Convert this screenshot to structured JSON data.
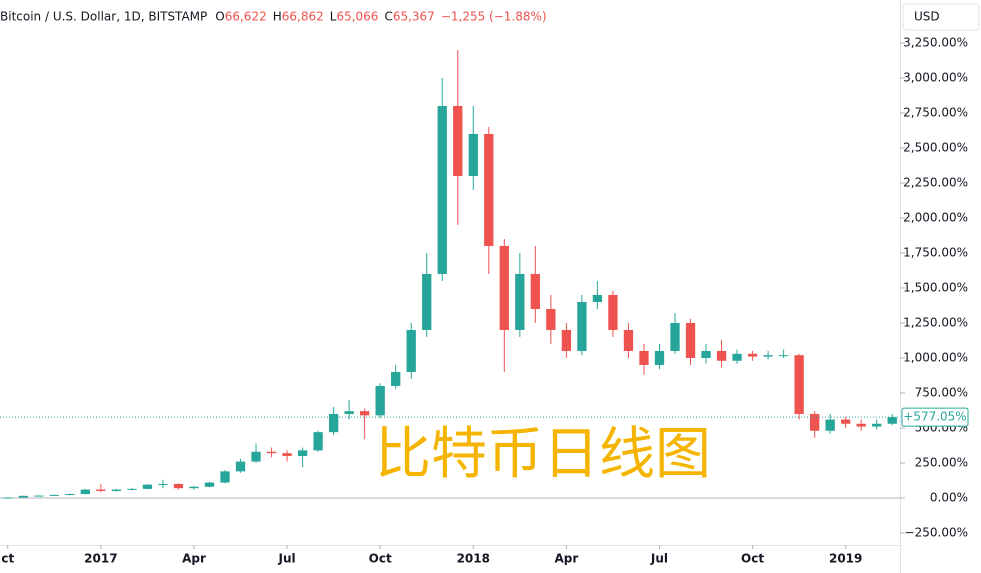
{
  "chart_data": {
    "type": "candlestick",
    "header": {
      "title": "Bitcoin / U.S. Dollar, 1D, BITSTAMP",
      "ohlc": [
        {
          "key": "O",
          "value": "66,622"
        },
        {
          "key": "H",
          "value": "66,862"
        },
        {
          "key": "L",
          "value": "65,066"
        },
        {
          "key": "C",
          "value": "65,367"
        }
      ],
      "change": "−1,255 (−1.88%)"
    },
    "currency": "USD",
    "watermark": "比特币日线图",
    "last_label": "+577.05%",
    "up_color": "#26a69a",
    "down_color": "#ef5350",
    "categories": [
      "ct",
      null,
      null,
      null,
      null,
      null,
      "2017",
      null,
      null,
      null,
      null,
      null,
      "Apr",
      null,
      null,
      null,
      null,
      null,
      "Jul",
      null,
      null,
      null,
      null,
      null,
      "Oct",
      null,
      null,
      null,
      null,
      null,
      "2018",
      null,
      null,
      null,
      null,
      null,
      "Apr",
      null,
      null,
      null,
      null,
      null,
      "Jul",
      null,
      null,
      null,
      null,
      null,
      "Oct",
      null,
      null,
      null,
      null,
      null,
      "2019",
      null,
      null,
      null
    ],
    "series": [
      {
        "name": "Bitcoin / U.S. Dollar",
        "open": [
          0,
          3,
          15,
          17,
          22,
          28,
          60,
          50,
          60,
          65,
          95,
          100,
          70,
          80,
          110,
          190,
          260,
          330,
          320,
          300,
          340,
          470,
          600,
          620,
          590,
          800,
          900,
          1200,
          1600,
          2800,
          2300,
          2600,
          1800,
          1200,
          1600,
          1350,
          1200,
          1050,
          1400,
          1450,
          1200,
          1050,
          950,
          1050,
          1250,
          1000,
          1050,
          980,
          1030,
          1010,
          1020,
          1020,
          600,
          480,
          560,
          530,
          510,
          530
        ],
        "high": [
          5,
          18,
          20,
          25,
          32,
          65,
          100,
          65,
          70,
          100,
          130,
          105,
          85,
          115,
          200,
          280,
          390,
          360,
          340,
          360,
          480,
          650,
          700,
          640,
          820,
          950,
          1250,
          1750,
          3000,
          3200,
          2800,
          2650,
          1850,
          1750,
          1800,
          1450,
          1250,
          1450,
          1550,
          1480,
          1250,
          1100,
          1100,
          1320,
          1280,
          1100,
          1130,
          1060,
          1050,
          1050,
          1060,
          1030,
          620,
          600,
          580,
          560,
          560,
          600
        ],
        "low": [
          -2,
          2,
          12,
          15,
          20,
          26,
          40,
          45,
          55,
          62,
          70,
          60,
          60,
          75,
          105,
          180,
          250,
          290,
          260,
          220,
          330,
          450,
          560,
          420,
          570,
          780,
          850,
          1150,
          1550,
          1950,
          2200,
          1600,
          900,
          1150,
          1250,
          1100,
          1000,
          1020,
          1350,
          1150,
          1000,
          880,
          920,
          1030,
          950,
          960,
          930,
          960,
          980,
          990,
          1000,
          560,
          430,
          460,
          500,
          480,
          490,
          520
        ],
        "close": [
          3,
          15,
          17,
          22,
          28,
          60,
          50,
          60,
          65,
          95,
          100,
          70,
          80,
          110,
          190,
          260,
          330,
          320,
          300,
          340,
          470,
          600,
          620,
          590,
          800,
          900,
          1200,
          1600,
          2800,
          2300,
          2600,
          1800,
          1200,
          1600,
          1350,
          1200,
          1050,
          1400,
          1450,
          1200,
          1050,
          950,
          1050,
          1250,
          1000,
          1050,
          980,
          1030,
          1010,
          1020,
          1020,
          600,
          480,
          560,
          530,
          510,
          530,
          577.05
        ]
      }
    ],
    "ylim": [
      -336,
      3557
    ],
    "yticks": [
      {
        "value": -250,
        "label": "−250.00%"
      },
      {
        "value": 0,
        "label": "0.00%"
      },
      {
        "value": 250,
        "label": "250.00%"
      },
      {
        "value": 500,
        "label": "500.00%"
      },
      {
        "value": 750,
        "label": "750.00%"
      },
      {
        "value": 1000,
        "label": "1,000.00%"
      },
      {
        "value": 1250,
        "label": "1,250.00%"
      },
      {
        "value": 1500,
        "label": "1,500.00%"
      },
      {
        "value": 1750,
        "label": "1,750.00%"
      },
      {
        "value": 2000,
        "label": "2,000.00%"
      },
      {
        "value": 2250,
        "label": "2,250.00%"
      },
      {
        "value": 2500,
        "label": "2,500.00%"
      },
      {
        "value": 2750,
        "label": "2,750.00%"
      },
      {
        "value": 3000,
        "label": "3,000.00%"
      },
      {
        "value": 3250,
        "label": "3,250.00%"
      }
    ]
  }
}
